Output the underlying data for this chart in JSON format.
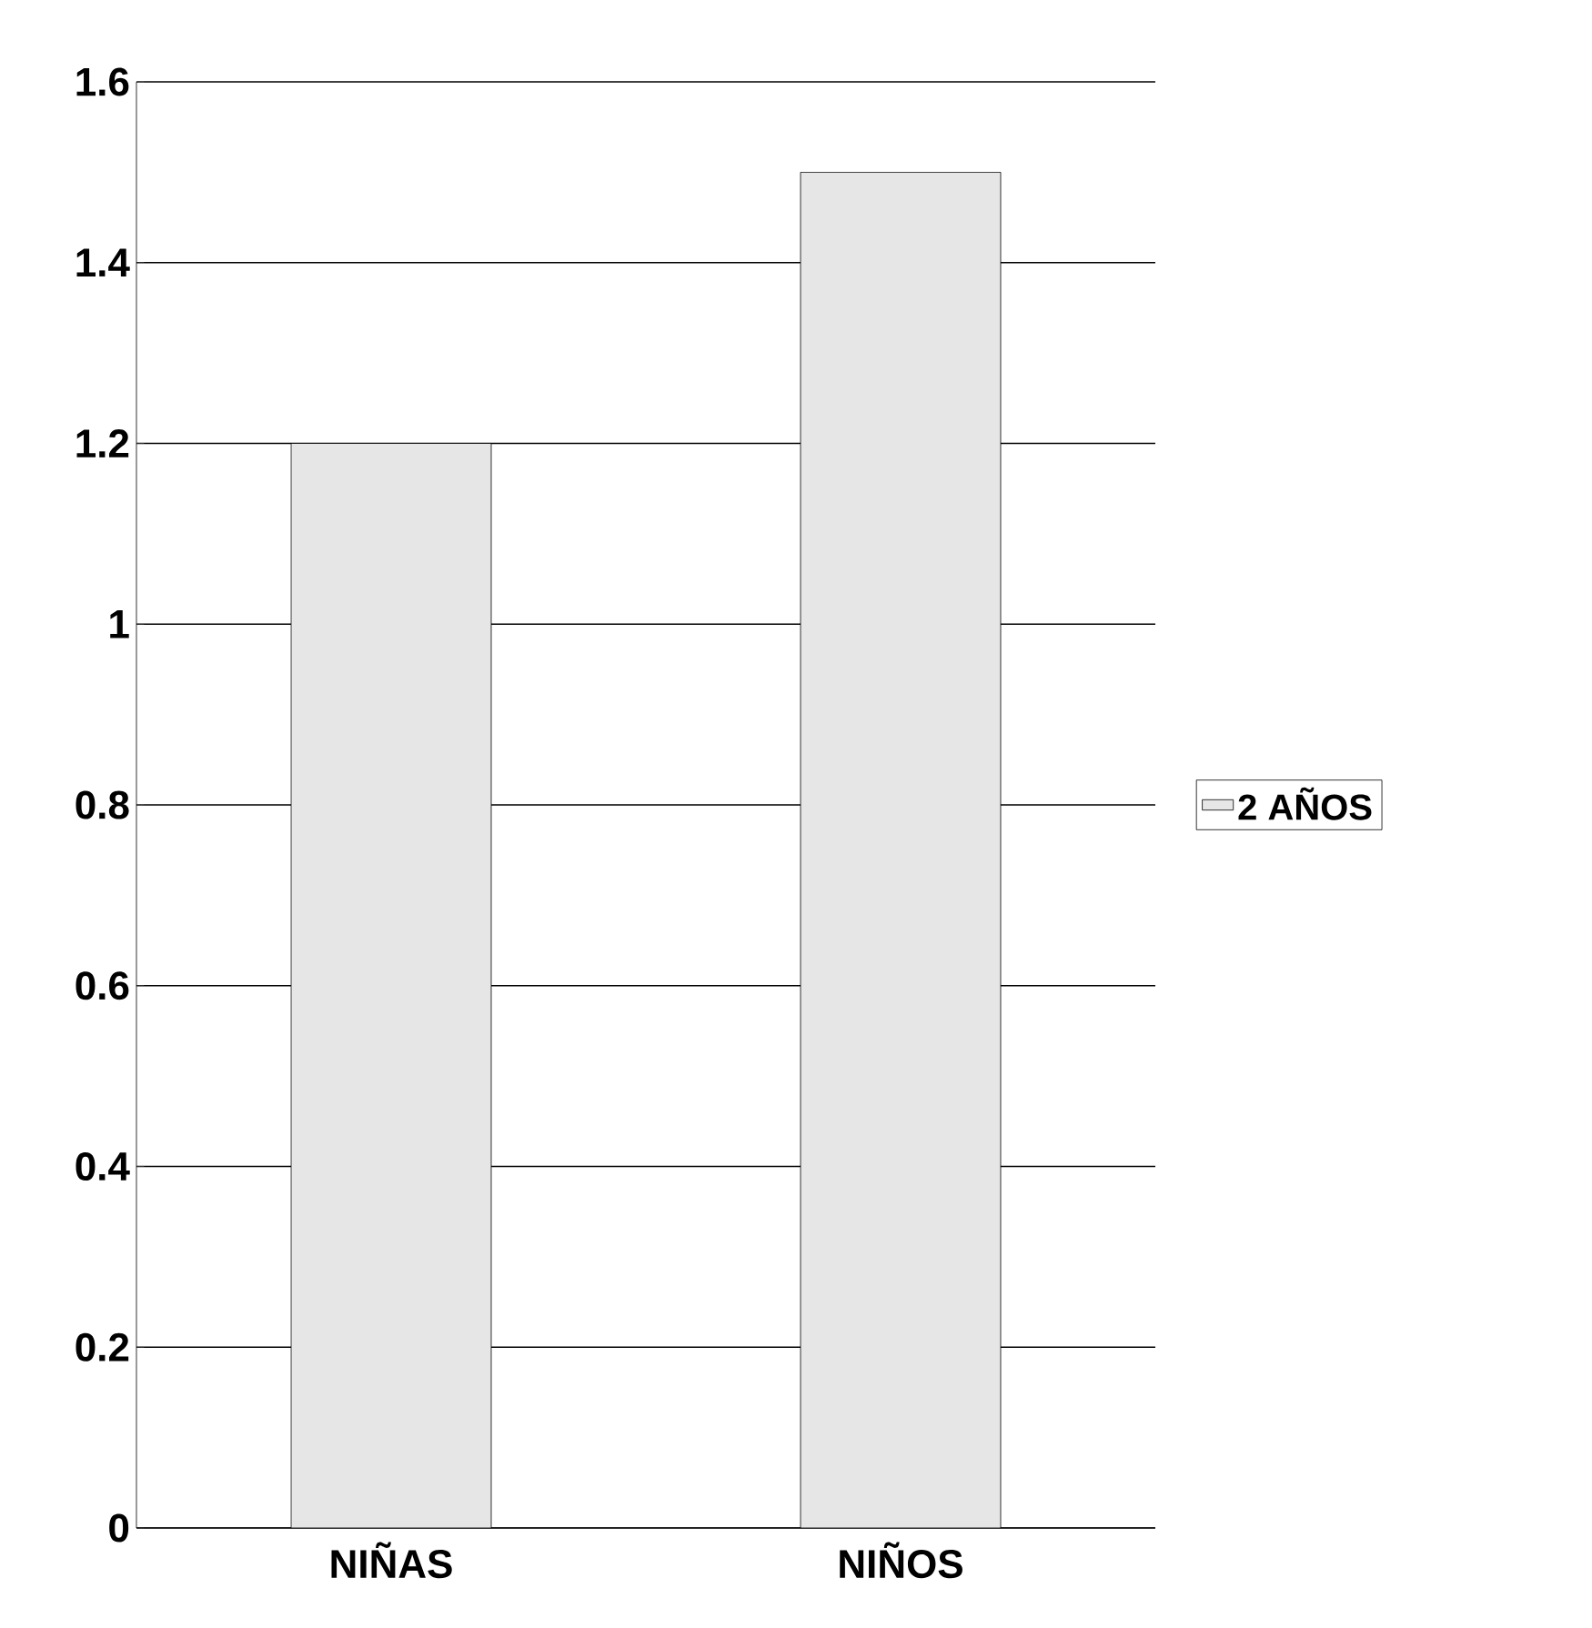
{
  "chart_data": {
    "type": "bar",
    "categories": [
      "NIÑAS",
      "NIÑOS"
    ],
    "series": [
      {
        "name": "2 AÑOS",
        "color": "#e6e6e6",
        "values": [
          1.2,
          1.5
        ]
      }
    ],
    "ylim": [
      0,
      1.6
    ],
    "yticks": [
      0,
      0.2,
      0.4,
      0.6,
      0.8,
      1,
      1.2,
      1.4,
      1.6
    ],
    "grid": "y",
    "legend": "right"
  }
}
